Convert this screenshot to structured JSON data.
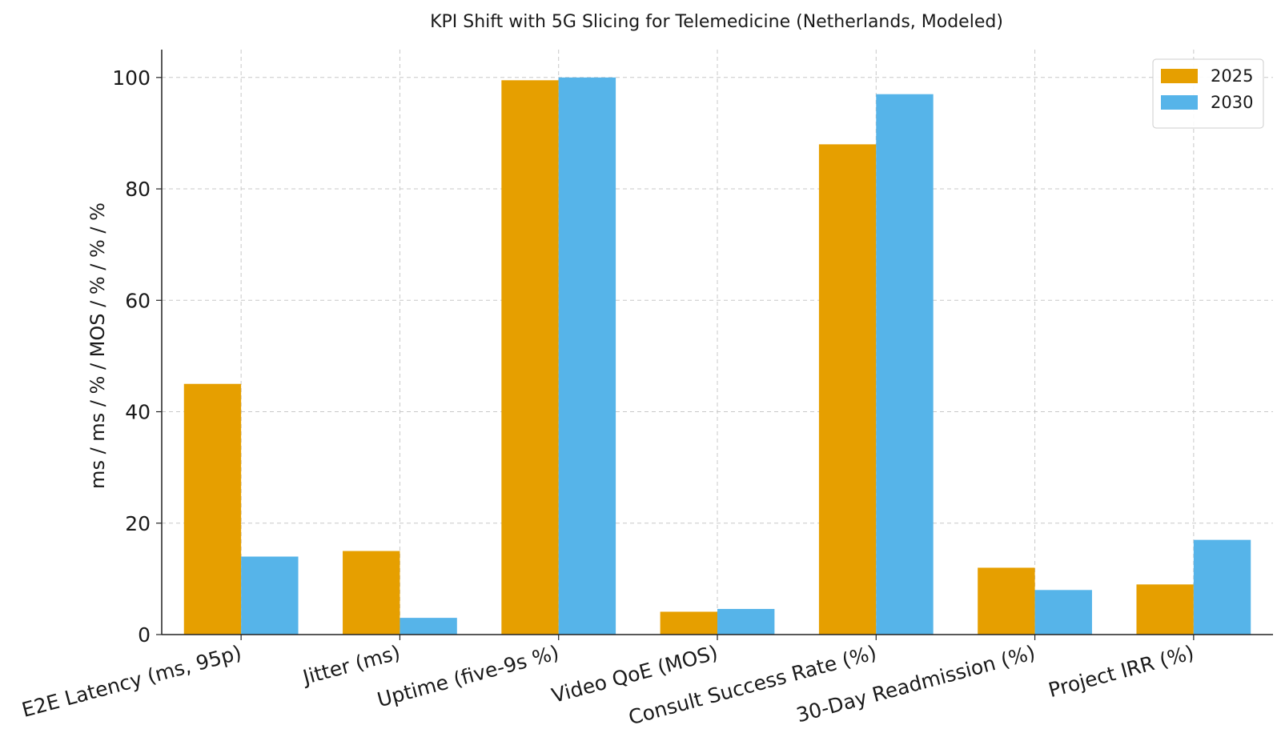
{
  "chart_data": {
    "type": "bar",
    "title": "KPI Shift with 5G Slicing for Telemedicine (Netherlands, Modeled)",
    "xlabel": "",
    "ylabel": "ms / ms / % / MOS / % / % / %",
    "categories": [
      "E2E Latency (ms, 95p)",
      "Jitter (ms)",
      "Uptime (five-9s %)",
      "Video QoE (MOS)",
      "Consult Success Rate (%)",
      "30-Day Readmission (%)",
      "Project IRR (%)"
    ],
    "series": [
      {
        "name": "2025",
        "color": "#E69F00",
        "values": [
          45,
          15,
          99.5,
          4.1,
          88,
          12,
          9
        ]
      },
      {
        "name": "2030",
        "color": "#56B4E9",
        "values": [
          14,
          3,
          99.999,
          4.6,
          97,
          8,
          17
        ]
      }
    ],
    "ylim": [
      0,
      105
    ],
    "yticks": [
      0,
      20,
      40,
      60,
      80,
      100
    ],
    "grid": true,
    "legend_position": "top-right"
  }
}
